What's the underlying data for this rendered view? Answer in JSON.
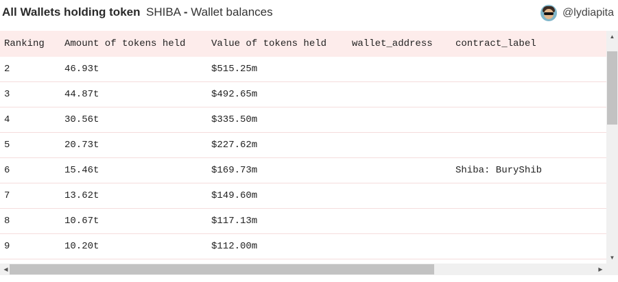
{
  "header": {
    "title_bold": "All Wallets holding token",
    "title_token": "SHIBA",
    "title_sep": "-",
    "title_sub": "Wallet balances",
    "author": "@lydiapita"
  },
  "table": {
    "columns": [
      "Ranking",
      "Amount of tokens held",
      "Value of tokens held",
      "wallet_address",
      "contract_label"
    ],
    "rows": [
      {
        "ranking": "2",
        "amount": "46.93t",
        "value": "$515.25m",
        "wallet": "",
        "label": ""
      },
      {
        "ranking": "3",
        "amount": "44.87t",
        "value": "$492.65m",
        "wallet": "",
        "label": ""
      },
      {
        "ranking": "4",
        "amount": "30.56t",
        "value": "$335.50m",
        "wallet": "",
        "label": ""
      },
      {
        "ranking": "5",
        "amount": "20.73t",
        "value": "$227.62m",
        "wallet": "",
        "label": ""
      },
      {
        "ranking": "6",
        "amount": "15.46t",
        "value": "$169.73m",
        "wallet": "",
        "label": "Shiba: BuryShib"
      },
      {
        "ranking": "7",
        "amount": "13.62t",
        "value": "$149.60m",
        "wallet": "",
        "label": ""
      },
      {
        "ranking": "8",
        "amount": "10.67t",
        "value": "$117.13m",
        "wallet": "",
        "label": ""
      },
      {
        "ranking": "9",
        "amount": "10.20t",
        "value": "$112.00m",
        "wallet": "",
        "label": ""
      }
    ]
  },
  "icons": {
    "avatar": "avatar-icon",
    "scroll_up": "arrow-up-icon",
    "scroll_down": "arrow-down-icon",
    "scroll_left": "arrow-left-icon",
    "scroll_right": "arrow-right-icon"
  },
  "colors": {
    "header_row_bg": "#fdeceb",
    "row_border": "#f5dcdc"
  }
}
